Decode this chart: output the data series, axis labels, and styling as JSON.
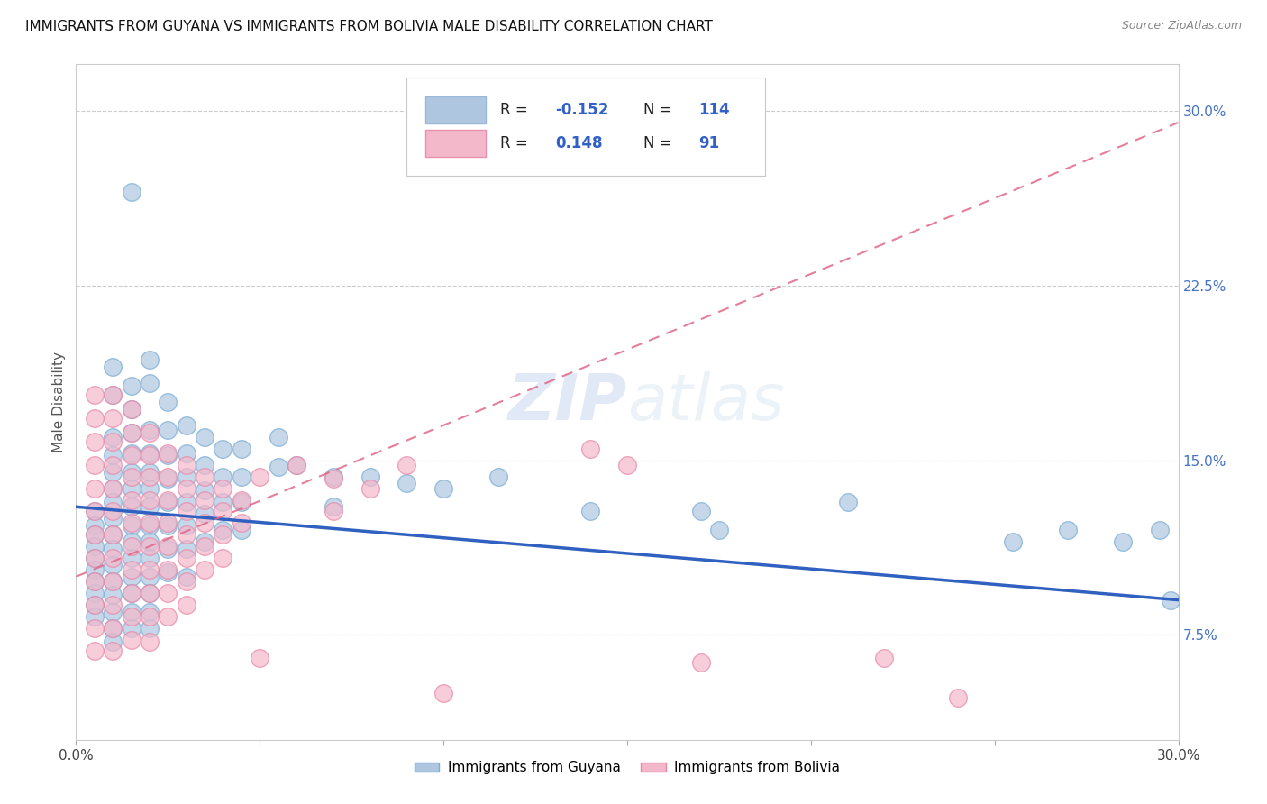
{
  "title": "IMMIGRANTS FROM GUYANA VS IMMIGRANTS FROM BOLIVIA MALE DISABILITY CORRELATION CHART",
  "source": "Source: ZipAtlas.com",
  "ylabel": "Male Disability",
  "xlim": [
    0.0,
    0.3
  ],
  "ylim": [
    0.03,
    0.32
  ],
  "guyana_color": "#aec6e0",
  "guyana_edge_color": "#7aadd4",
  "bolivia_color": "#f4b8cb",
  "bolivia_edge_color": "#e888a8",
  "guyana_line_color": "#3060c0",
  "bolivia_line_color": "#e06888",
  "legend_label_guyana": "Immigrants from Guyana",
  "legend_label_bolivia": "Immigrants from Bolivia",
  "r_guyana": "-0.152",
  "n_guyana": "114",
  "r_bolivia": "0.148",
  "n_bolivia": "91",
  "watermark": "ZIPatlas",
  "guyana_line_x0": 0.0,
  "guyana_line_y0": 0.13,
  "guyana_line_x1": 0.3,
  "guyana_line_y1": 0.09,
  "bolivia_line_x0": 0.0,
  "bolivia_line_y0": 0.1,
  "bolivia_line_x1": 0.3,
  "bolivia_line_y1": 0.295,
  "guyana_scatter": [
    [
      0.005,
      0.128
    ],
    [
      0.005,
      0.122
    ],
    [
      0.005,
      0.118
    ],
    [
      0.005,
      0.113
    ],
    [
      0.005,
      0.108
    ],
    [
      0.005,
      0.103
    ],
    [
      0.005,
      0.098
    ],
    [
      0.005,
      0.093
    ],
    [
      0.005,
      0.088
    ],
    [
      0.005,
      0.083
    ],
    [
      0.01,
      0.19
    ],
    [
      0.01,
      0.178
    ],
    [
      0.01,
      0.16
    ],
    [
      0.01,
      0.152
    ],
    [
      0.01,
      0.145
    ],
    [
      0.01,
      0.138
    ],
    [
      0.01,
      0.132
    ],
    [
      0.01,
      0.125
    ],
    [
      0.01,
      0.118
    ],
    [
      0.01,
      0.112
    ],
    [
      0.01,
      0.105
    ],
    [
      0.01,
      0.098
    ],
    [
      0.01,
      0.092
    ],
    [
      0.01,
      0.085
    ],
    [
      0.01,
      0.078
    ],
    [
      0.01,
      0.072
    ],
    [
      0.015,
      0.265
    ],
    [
      0.015,
      0.182
    ],
    [
      0.015,
      0.172
    ],
    [
      0.015,
      0.162
    ],
    [
      0.015,
      0.153
    ],
    [
      0.015,
      0.145
    ],
    [
      0.015,
      0.138
    ],
    [
      0.015,
      0.13
    ],
    [
      0.015,
      0.122
    ],
    [
      0.015,
      0.115
    ],
    [
      0.015,
      0.108
    ],
    [
      0.015,
      0.1
    ],
    [
      0.015,
      0.093
    ],
    [
      0.015,
      0.085
    ],
    [
      0.015,
      0.078
    ],
    [
      0.02,
      0.193
    ],
    [
      0.02,
      0.183
    ],
    [
      0.02,
      0.163
    ],
    [
      0.02,
      0.153
    ],
    [
      0.02,
      0.145
    ],
    [
      0.02,
      0.138
    ],
    [
      0.02,
      0.13
    ],
    [
      0.02,
      0.122
    ],
    [
      0.02,
      0.115
    ],
    [
      0.02,
      0.108
    ],
    [
      0.02,
      0.1
    ],
    [
      0.02,
      0.093
    ],
    [
      0.02,
      0.085
    ],
    [
      0.02,
      0.078
    ],
    [
      0.025,
      0.175
    ],
    [
      0.025,
      0.163
    ],
    [
      0.025,
      0.152
    ],
    [
      0.025,
      0.142
    ],
    [
      0.025,
      0.132
    ],
    [
      0.025,
      0.122
    ],
    [
      0.025,
      0.112
    ],
    [
      0.025,
      0.102
    ],
    [
      0.03,
      0.165
    ],
    [
      0.03,
      0.153
    ],
    [
      0.03,
      0.143
    ],
    [
      0.03,
      0.132
    ],
    [
      0.03,
      0.122
    ],
    [
      0.03,
      0.112
    ],
    [
      0.03,
      0.1
    ],
    [
      0.035,
      0.16
    ],
    [
      0.035,
      0.148
    ],
    [
      0.035,
      0.137
    ],
    [
      0.035,
      0.127
    ],
    [
      0.035,
      0.115
    ],
    [
      0.04,
      0.155
    ],
    [
      0.04,
      0.143
    ],
    [
      0.04,
      0.132
    ],
    [
      0.04,
      0.12
    ],
    [
      0.045,
      0.155
    ],
    [
      0.045,
      0.143
    ],
    [
      0.045,
      0.132
    ],
    [
      0.045,
      0.12
    ],
    [
      0.055,
      0.16
    ],
    [
      0.055,
      0.147
    ],
    [
      0.06,
      0.148
    ],
    [
      0.07,
      0.143
    ],
    [
      0.07,
      0.13
    ],
    [
      0.08,
      0.143
    ],
    [
      0.09,
      0.14
    ],
    [
      0.1,
      0.138
    ],
    [
      0.115,
      0.143
    ],
    [
      0.14,
      0.128
    ],
    [
      0.17,
      0.128
    ],
    [
      0.175,
      0.12
    ],
    [
      0.21,
      0.132
    ],
    [
      0.255,
      0.115
    ],
    [
      0.27,
      0.12
    ],
    [
      0.285,
      0.115
    ],
    [
      0.295,
      0.12
    ],
    [
      0.298,
      0.09
    ]
  ],
  "bolivia_scatter": [
    [
      0.005,
      0.178
    ],
    [
      0.005,
      0.168
    ],
    [
      0.005,
      0.158
    ],
    [
      0.005,
      0.148
    ],
    [
      0.005,
      0.138
    ],
    [
      0.005,
      0.128
    ],
    [
      0.005,
      0.118
    ],
    [
      0.005,
      0.108
    ],
    [
      0.005,
      0.098
    ],
    [
      0.005,
      0.088
    ],
    [
      0.005,
      0.078
    ],
    [
      0.005,
      0.068
    ],
    [
      0.01,
      0.178
    ],
    [
      0.01,
      0.168
    ],
    [
      0.01,
      0.158
    ],
    [
      0.01,
      0.148
    ],
    [
      0.01,
      0.138
    ],
    [
      0.01,
      0.128
    ],
    [
      0.01,
      0.118
    ],
    [
      0.01,
      0.108
    ],
    [
      0.01,
      0.098
    ],
    [
      0.01,
      0.088
    ],
    [
      0.01,
      0.078
    ],
    [
      0.01,
      0.068
    ],
    [
      0.015,
      0.172
    ],
    [
      0.015,
      0.162
    ],
    [
      0.015,
      0.152
    ],
    [
      0.015,
      0.143
    ],
    [
      0.015,
      0.133
    ],
    [
      0.015,
      0.123
    ],
    [
      0.015,
      0.113
    ],
    [
      0.015,
      0.103
    ],
    [
      0.015,
      0.093
    ],
    [
      0.015,
      0.083
    ],
    [
      0.015,
      0.073
    ],
    [
      0.02,
      0.162
    ],
    [
      0.02,
      0.152
    ],
    [
      0.02,
      0.143
    ],
    [
      0.02,
      0.133
    ],
    [
      0.02,
      0.123
    ],
    [
      0.02,
      0.113
    ],
    [
      0.02,
      0.103
    ],
    [
      0.02,
      0.093
    ],
    [
      0.02,
      0.083
    ],
    [
      0.02,
      0.072
    ],
    [
      0.025,
      0.153
    ],
    [
      0.025,
      0.143
    ],
    [
      0.025,
      0.133
    ],
    [
      0.025,
      0.123
    ],
    [
      0.025,
      0.113
    ],
    [
      0.025,
      0.103
    ],
    [
      0.025,
      0.093
    ],
    [
      0.025,
      0.083
    ],
    [
      0.03,
      0.148
    ],
    [
      0.03,
      0.138
    ],
    [
      0.03,
      0.128
    ],
    [
      0.03,
      0.118
    ],
    [
      0.03,
      0.108
    ],
    [
      0.03,
      0.098
    ],
    [
      0.03,
      0.088
    ],
    [
      0.035,
      0.143
    ],
    [
      0.035,
      0.133
    ],
    [
      0.035,
      0.123
    ],
    [
      0.035,
      0.113
    ],
    [
      0.035,
      0.103
    ],
    [
      0.04,
      0.138
    ],
    [
      0.04,
      0.128
    ],
    [
      0.04,
      0.118
    ],
    [
      0.04,
      0.108
    ],
    [
      0.045,
      0.133
    ],
    [
      0.045,
      0.123
    ],
    [
      0.05,
      0.143
    ],
    [
      0.05,
      0.065
    ],
    [
      0.06,
      0.148
    ],
    [
      0.07,
      0.142
    ],
    [
      0.07,
      0.128
    ],
    [
      0.08,
      0.138
    ],
    [
      0.09,
      0.148
    ],
    [
      0.1,
      0.05
    ],
    [
      0.14,
      0.155
    ],
    [
      0.15,
      0.148
    ],
    [
      0.17,
      0.063
    ],
    [
      0.22,
      0.065
    ],
    [
      0.24,
      0.048
    ]
  ]
}
